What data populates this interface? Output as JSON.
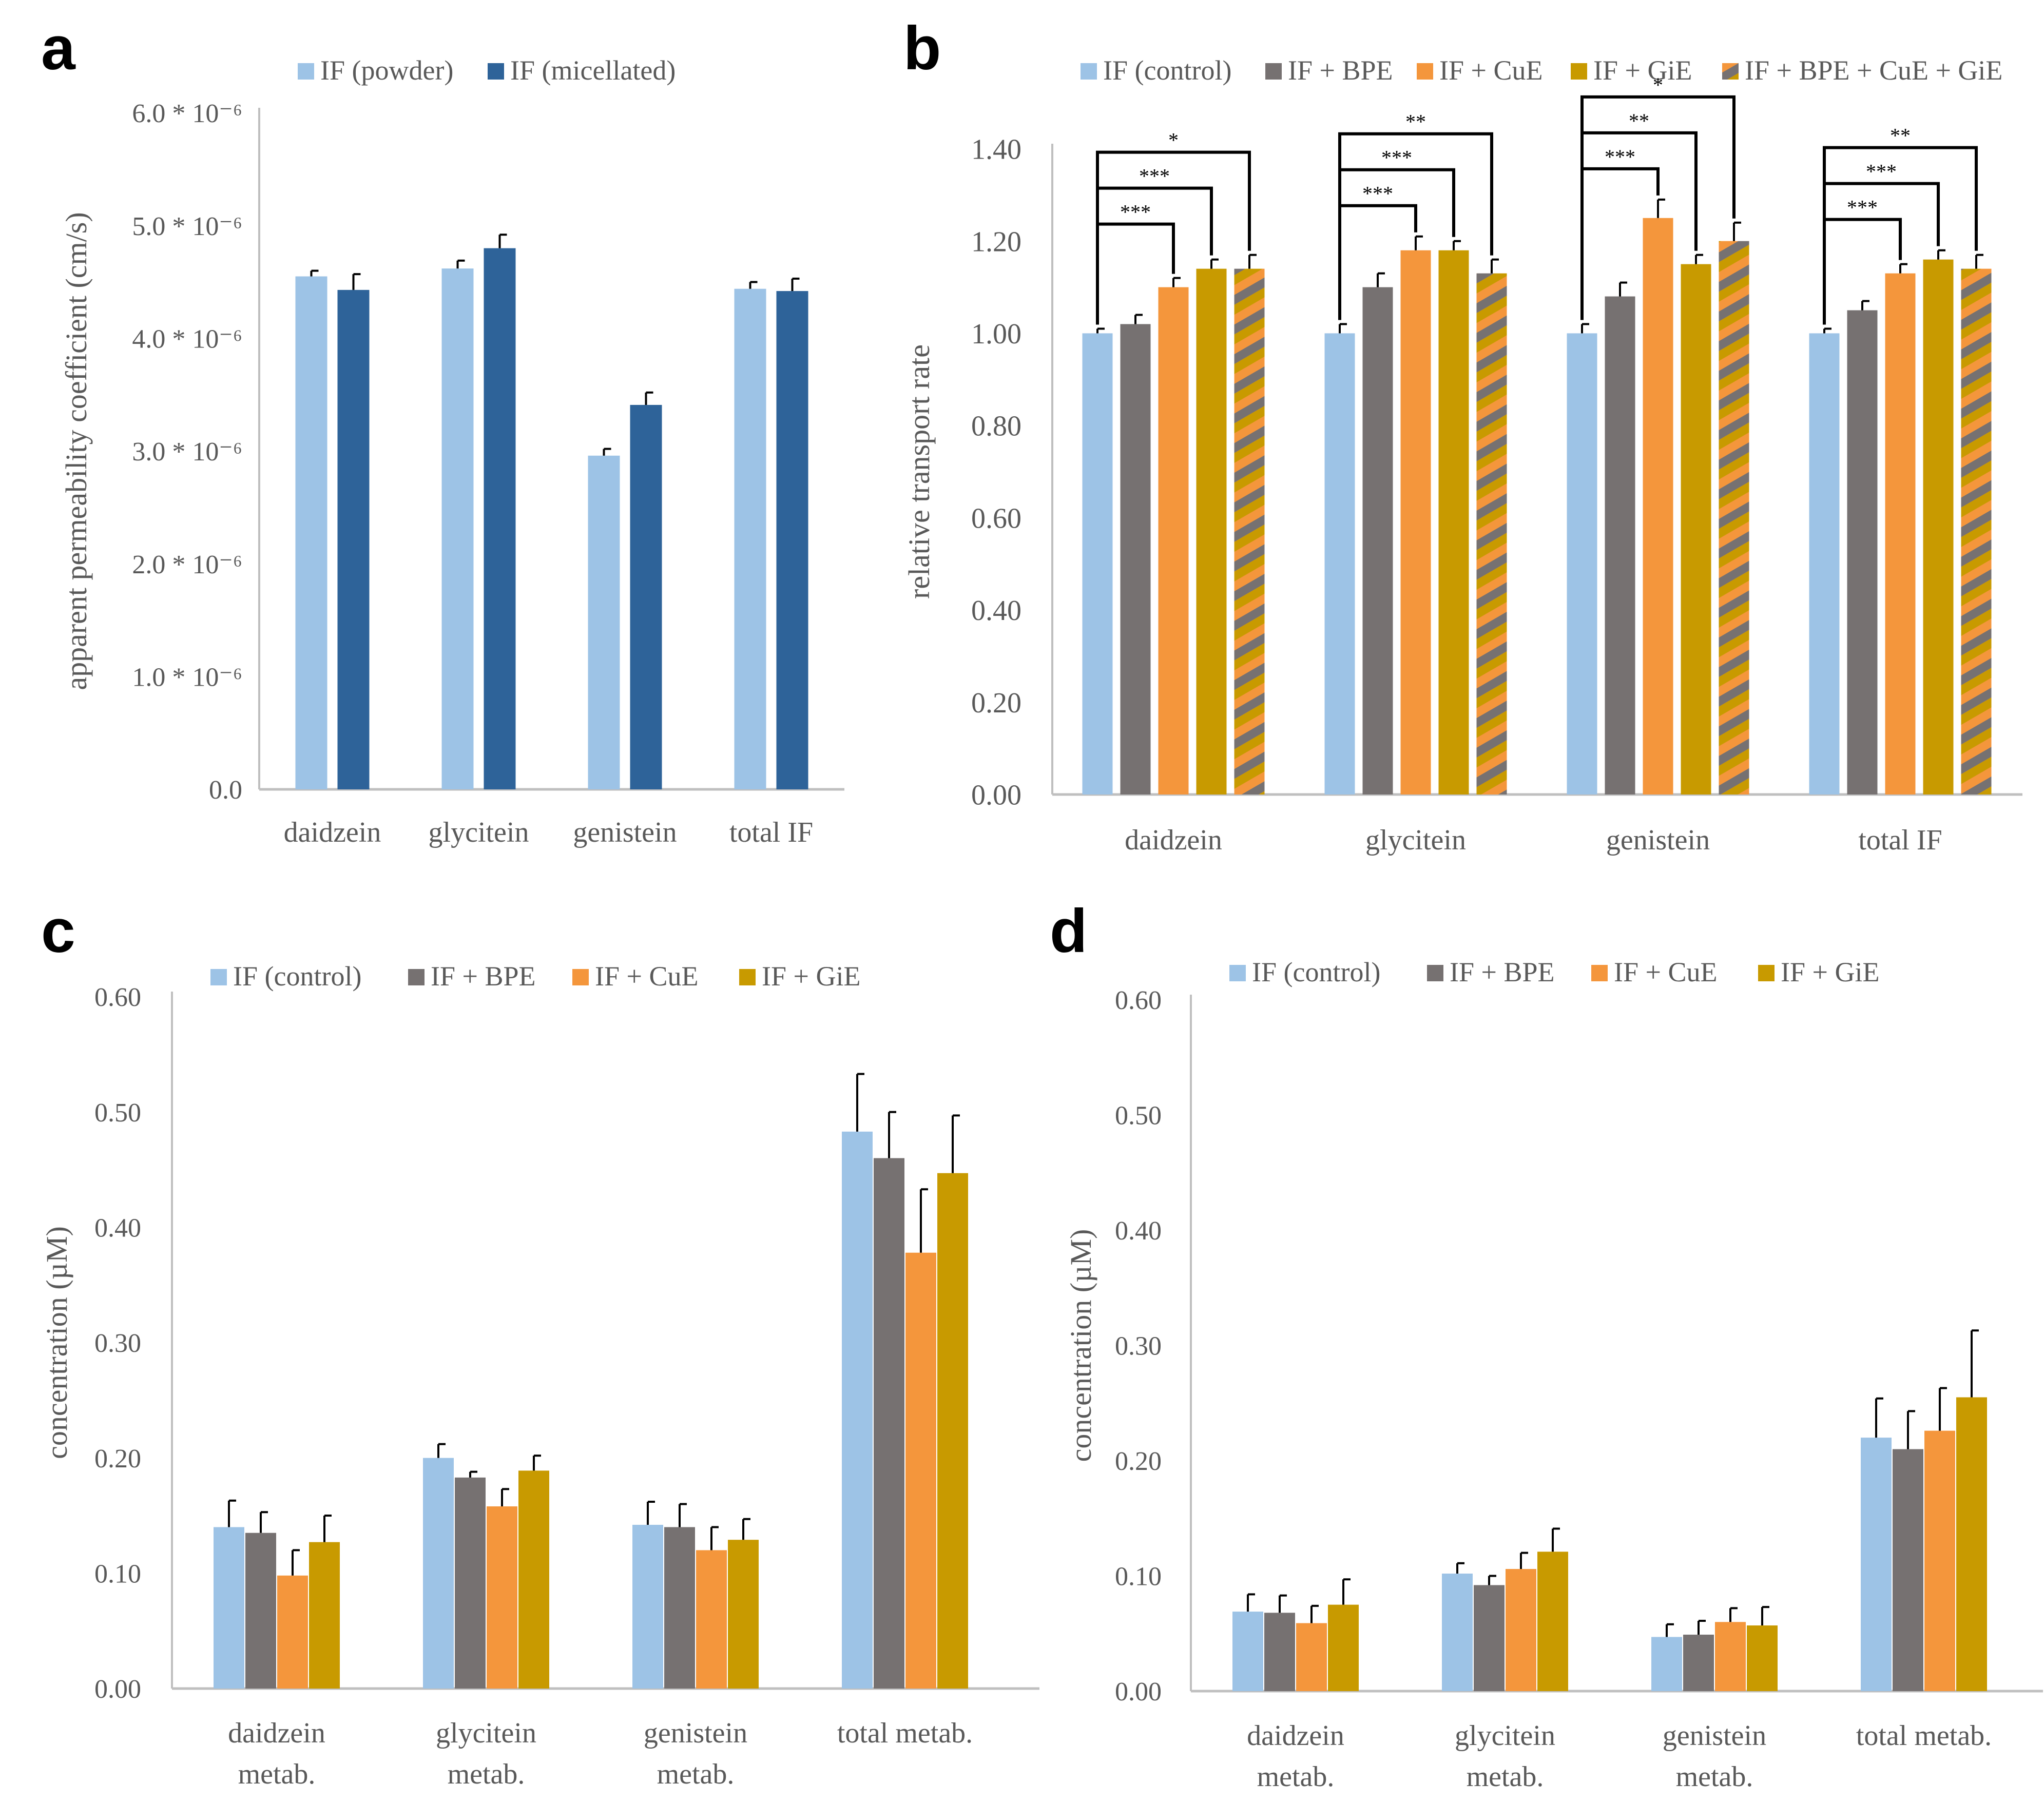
{
  "colors": {
    "control": "#9DC3E6",
    "bpe": "#767171",
    "cue": "#F4963C",
    "gie": "#C89A00",
    "powder": "#9DC3E6",
    "micellated": "#2E6399",
    "axis": "#BFBFBF",
    "text": "#595959"
  },
  "chart_data": [
    {
      "panel": "a",
      "type": "bar",
      "categories": [
        "daidzein",
        "glycitein",
        "genistein",
        "total IF"
      ],
      "ylabel": "apparent permeability coefficient (cm/s)",
      "ylim": [
        0,
        6.0
      ],
      "ytick_values": [
        0,
        1,
        2,
        3,
        4,
        5,
        6
      ],
      "ytick_labels": [
        "0.0",
        "1.0 * 10⁻⁶",
        "2.0 * 10⁻⁶",
        "3.0 * 10⁻⁶",
        "4.0 * 10⁻⁶",
        "5.0 * 10⁻⁶",
        "6.0 * 10⁻⁶"
      ],
      "series": [
        {
          "name": "IF (powder)",
          "color_key": "powder",
          "values": [
            4.55,
            4.62,
            2.96,
            4.44
          ],
          "errors": [
            0.05,
            0.07,
            0.06,
            0.06
          ]
        },
        {
          "name": "IF (micellated)",
          "color_key": "micellated",
          "values": [
            4.43,
            4.8,
            3.41,
            4.42
          ],
          "errors": [
            0.14,
            0.12,
            0.11,
            0.11
          ]
        }
      ],
      "significance": []
    },
    {
      "panel": "b",
      "type": "bar",
      "categories": [
        "daidzein",
        "glycitein",
        "genistein",
        "total IF"
      ],
      "ylabel": "relative transport rate",
      "ylim": [
        0,
        1.4
      ],
      "ytick_values": [
        0,
        0.2,
        0.4,
        0.6,
        0.8,
        1.0,
        1.2,
        1.4
      ],
      "ytick_labels": [
        "0.00",
        "0.20",
        "0.40",
        "0.60",
        "0.80",
        "1.00",
        "1.20",
        "1.40"
      ],
      "series": [
        {
          "name": "IF (control)",
          "color_key": "control",
          "values": [
            1.0,
            1.0,
            1.0,
            1.0
          ],
          "errors": [
            0.01,
            0.02,
            0.02,
            0.01
          ]
        },
        {
          "name": "IF + BPE",
          "color_key": "bpe",
          "values": [
            1.02,
            1.1,
            1.08,
            1.05
          ],
          "errors": [
            0.02,
            0.03,
            0.03,
            0.02
          ]
        },
        {
          "name": "IF + CuE",
          "color_key": "cue",
          "values": [
            1.1,
            1.18,
            1.25,
            1.13
          ],
          "errors": [
            0.02,
            0.03,
            0.04,
            0.02
          ]
        },
        {
          "name": "IF + GiE",
          "color_key": "gie",
          "values": [
            1.14,
            1.18,
            1.15,
            1.16
          ],
          "errors": [
            0.02,
            0.02,
            0.02,
            0.02
          ]
        },
        {
          "name": "IF + BPE + CuE + GiE",
          "color_key": "striped",
          "values": [
            1.14,
            1.13,
            1.2,
            1.14
          ],
          "errors": [
            0.03,
            0.03,
            0.04,
            0.03
          ]
        }
      ],
      "significance": [
        {
          "category": 0,
          "to_series": 2,
          "label": "***"
        },
        {
          "category": 0,
          "to_series": 3,
          "label": "***"
        },
        {
          "category": 0,
          "to_series": 4,
          "label": "*"
        },
        {
          "category": 1,
          "to_series": 2,
          "label": "***"
        },
        {
          "category": 1,
          "to_series": 3,
          "label": "***"
        },
        {
          "category": 1,
          "to_series": 4,
          "label": "**"
        },
        {
          "category": 2,
          "to_series": 2,
          "label": "***"
        },
        {
          "category": 2,
          "to_series": 3,
          "label": "**"
        },
        {
          "category": 2,
          "to_series": 4,
          "label": "*"
        },
        {
          "category": 3,
          "to_series": 2,
          "label": "***"
        },
        {
          "category": 3,
          "to_series": 3,
          "label": "***"
        },
        {
          "category": 3,
          "to_series": 4,
          "label": "**"
        }
      ]
    },
    {
      "panel": "c",
      "type": "bar",
      "categories": [
        [
          "daidzein",
          "metab."
        ],
        [
          "glycitein",
          "metab."
        ],
        [
          "genistein",
          "metab."
        ],
        [
          "total metab."
        ]
      ],
      "ylabel": "concentration (µM)",
      "ylim": [
        0,
        0.6
      ],
      "ytick_values": [
        0,
        0.1,
        0.2,
        0.3,
        0.4,
        0.5,
        0.6
      ],
      "ytick_labels": [
        "0.00",
        "0.10",
        "0.20",
        "0.30",
        "0.40",
        "0.50",
        "0.60"
      ],
      "series": [
        {
          "name": "IF (control)",
          "color_key": "control",
          "values": [
            0.14,
            0.2,
            0.142,
            0.483
          ],
          "errors": [
            0.023,
            0.012,
            0.02,
            0.05
          ]
        },
        {
          "name": "IF + BPE",
          "color_key": "bpe",
          "values": [
            0.135,
            0.183,
            0.14,
            0.46
          ],
          "errors": [
            0.018,
            0.005,
            0.02,
            0.04
          ]
        },
        {
          "name": "IF + CuE",
          "color_key": "cue",
          "values": [
            0.098,
            0.158,
            0.12,
            0.378
          ],
          "errors": [
            0.022,
            0.015,
            0.02,
            0.055
          ]
        },
        {
          "name": "IF + GiE",
          "color_key": "gie",
          "values": [
            0.127,
            0.189,
            0.129,
            0.447
          ],
          "errors": [
            0.023,
            0.013,
            0.018,
            0.05
          ]
        }
      ],
      "significance": []
    },
    {
      "panel": "d",
      "type": "bar",
      "categories": [
        [
          "daidzein",
          "metab."
        ],
        [
          "glycitein",
          "metab."
        ],
        [
          "genistein",
          "metab."
        ],
        [
          "total metab."
        ]
      ],
      "ylabel": "concentration (µM)",
      "ylim": [
        0,
        0.6
      ],
      "ytick_values": [
        0,
        0.1,
        0.2,
        0.3,
        0.4,
        0.5,
        0.6
      ],
      "ytick_labels": [
        "0.00",
        "0.10",
        "0.20",
        "0.30",
        "0.40",
        "0.50",
        "0.60"
      ],
      "series": [
        {
          "name": "IF (control)",
          "color_key": "control",
          "values": [
            0.069,
            0.102,
            0.047,
            0.22
          ],
          "errors": [
            0.015,
            0.009,
            0.011,
            0.034
          ]
        },
        {
          "name": "IF + BPE",
          "color_key": "bpe",
          "values": [
            0.068,
            0.092,
            0.049,
            0.21
          ],
          "errors": [
            0.015,
            0.008,
            0.012,
            0.033
          ]
        },
        {
          "name": "IF + CuE",
          "color_key": "cue",
          "values": [
            0.059,
            0.106,
            0.06,
            0.226
          ],
          "errors": [
            0.015,
            0.014,
            0.012,
            0.037
          ]
        },
        {
          "name": "IF + GiE",
          "color_key": "gie",
          "values": [
            0.075,
            0.121,
            0.057,
            0.255
          ],
          "errors": [
            0.022,
            0.02,
            0.016,
            0.058
          ]
        }
      ],
      "significance": []
    }
  ]
}
